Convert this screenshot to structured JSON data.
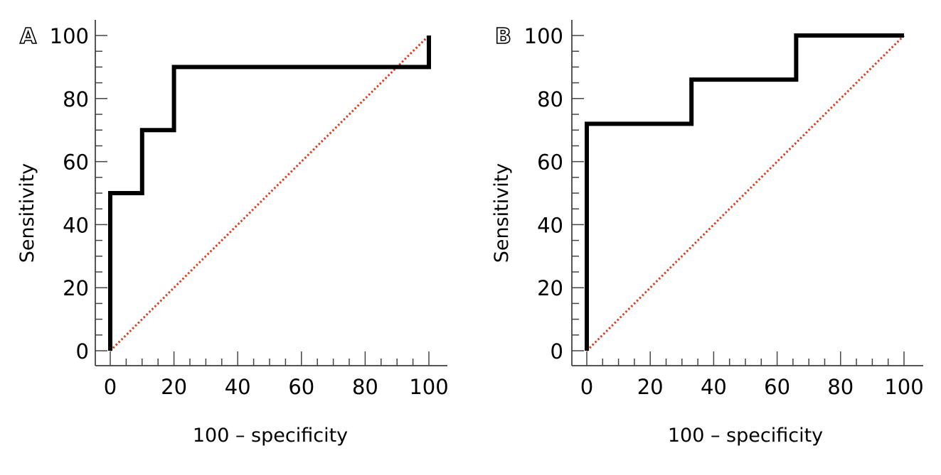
{
  "chart_data": [
    {
      "type": "line",
      "panel_label": "A",
      "xlabel": "100 – specificity",
      "ylabel": "Sensitivity",
      "xlim": [
        0,
        100
      ],
      "ylim": [
        0,
        100
      ],
      "xticks": [
        "0",
        "20",
        "40",
        "60",
        "80",
        "100"
      ],
      "yticks": [
        "0",
        "20",
        "40",
        "60",
        "80",
        "100"
      ],
      "grid": false,
      "series": [
        {
          "name": "ROC curve",
          "color": "#000000",
          "style": "step",
          "x": [
            0,
            0,
            10,
            10,
            20,
            20,
            100,
            100
          ],
          "y": [
            0,
            50,
            50,
            70,
            70,
            90,
            90,
            100
          ]
        },
        {
          "name": "Reference line",
          "color": "#d9401f",
          "style": "dotted",
          "x": [
            0,
            100
          ],
          "y": [
            0,
            100
          ]
        }
      ]
    },
    {
      "type": "line",
      "panel_label": "B",
      "xlabel": "100 – specificity",
      "ylabel": "Sensitivity",
      "xlim": [
        0,
        100
      ],
      "ylim": [
        0,
        100
      ],
      "xticks": [
        "0",
        "20",
        "40",
        "60",
        "80",
        "100"
      ],
      "yticks": [
        "0",
        "20",
        "40",
        "60",
        "80",
        "100"
      ],
      "grid": false,
      "series": [
        {
          "name": "ROC curve",
          "color": "#000000",
          "style": "step",
          "x": [
            0,
            0,
            33,
            33,
            66,
            66,
            100
          ],
          "y": [
            0,
            72,
            72,
            86,
            86,
            100,
            100
          ]
        },
        {
          "name": "Reference line",
          "color": "#d9401f",
          "style": "dotted",
          "x": [
            0,
            100
          ],
          "y": [
            0,
            100
          ]
        }
      ]
    }
  ]
}
